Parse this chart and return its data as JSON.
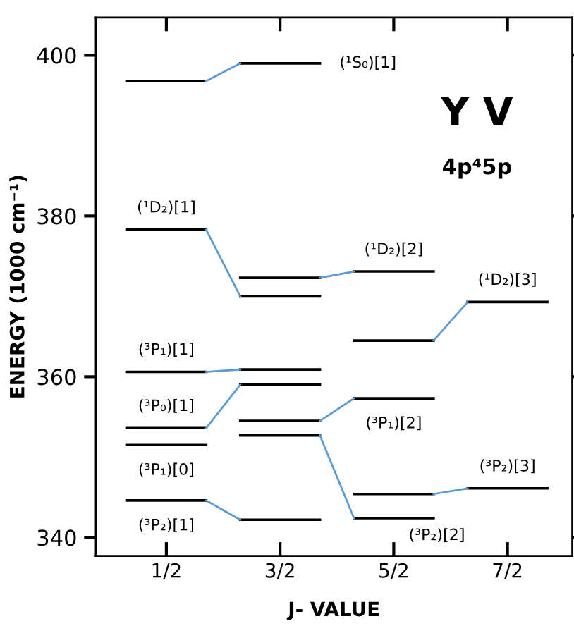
{
  "chart_data": {
    "type": "line",
    "title": "Y V",
    "subtitle": "4p⁴5p",
    "xlabel": "J- VALUE",
    "ylabel": "ENERGY (1000 cm⁻¹)",
    "xlim": [
      -0.12,
      4.07
    ],
    "ylim": [
      337.7,
      404.7
    ],
    "xticks": [
      {
        "value": 0.5,
        "label": "1/2"
      },
      {
        "value": 1.5,
        "label": "3/2"
      },
      {
        "value": 2.5,
        "label": "5/2"
      },
      {
        "value": 3.5,
        "label": "7/2"
      }
    ],
    "yticks": [
      340,
      360,
      380,
      400
    ],
    "grid": false,
    "legend": false,
    "marker": "none",
    "line_style": "solid",
    "series": [
      {
        "color": "#000000",
        "x": [
          0.15,
          0.85
        ],
        "values": [
          396.8,
          396.8
        ]
      },
      {
        "color": "#000000",
        "x": [
          0.15,
          0.85
        ],
        "values": [
          378.3,
          378.3
        ]
      },
      {
        "color": "#000000",
        "x": [
          0.15,
          0.85
        ],
        "values": [
          360.6,
          360.6
        ]
      },
      {
        "color": "#000000",
        "x": [
          0.15,
          0.85
        ],
        "values": [
          353.6,
          353.6
        ]
      },
      {
        "color": "#000000",
        "x": [
          0.15,
          0.85
        ],
        "values": [
          351.5,
          351.5
        ]
      },
      {
        "color": "#000000",
        "x": [
          0.15,
          0.85
        ],
        "values": [
          344.6,
          344.6
        ]
      },
      {
        "color": "#000000",
        "x": [
          1.15,
          1.85
        ],
        "values": [
          399.0,
          399.0
        ]
      },
      {
        "color": "#000000",
        "x": [
          1.15,
          1.85
        ],
        "values": [
          372.3,
          372.3
        ]
      },
      {
        "color": "#000000",
        "x": [
          1.15,
          1.85
        ],
        "values": [
          370.0,
          370.0
        ]
      },
      {
        "color": "#000000",
        "x": [
          1.15,
          1.85
        ],
        "values": [
          360.9,
          360.9
        ]
      },
      {
        "color": "#000000",
        "x": [
          1.15,
          1.85
        ],
        "values": [
          359.0,
          359.0
        ]
      },
      {
        "color": "#000000",
        "x": [
          1.15,
          1.85
        ],
        "values": [
          354.5,
          354.5
        ]
      },
      {
        "color": "#000000",
        "x": [
          1.15,
          1.85
        ],
        "values": [
          352.7,
          352.7
        ]
      },
      {
        "color": "#000000",
        "x": [
          1.15,
          1.85
        ],
        "values": [
          342.2,
          342.2
        ]
      },
      {
        "color": "#000000",
        "x": [
          2.15,
          2.85
        ],
        "values": [
          373.1,
          373.1
        ]
      },
      {
        "color": "#000000",
        "x": [
          2.15,
          2.85
        ],
        "values": [
          364.5,
          364.5
        ]
      },
      {
        "color": "#000000",
        "x": [
          2.15,
          2.85
        ],
        "values": [
          357.3,
          357.3
        ]
      },
      {
        "color": "#000000",
        "x": [
          2.15,
          2.85
        ],
        "values": [
          345.4,
          345.4
        ]
      },
      {
        "color": "#000000",
        "x": [
          2.15,
          2.85
        ],
        "values": [
          342.4,
          342.4
        ]
      },
      {
        "color": "#000000",
        "x": [
          3.15,
          3.85
        ],
        "values": [
          369.3,
          369.3
        ]
      },
      {
        "color": "#000000",
        "x": [
          3.15,
          3.85
        ],
        "values": [
          346.1,
          346.1
        ]
      },
      {
        "color": "#5b9bd5",
        "x": [
          0.85,
          1.15
        ],
        "values": [
          396.8,
          399.0
        ]
      },
      {
        "color": "#5b9bd5",
        "x": [
          0.85,
          1.15
        ],
        "values": [
          378.3,
          370.0
        ]
      },
      {
        "color": "#5b9bd5",
        "x": [
          1.85,
          2.15
        ],
        "values": [
          372.3,
          373.1
        ]
      },
      {
        "color": "#5b9bd5",
        "x": [
          2.85,
          3.15
        ],
        "values": [
          364.5,
          369.3
        ]
      },
      {
        "color": "#5b9bd5",
        "x": [
          0.85,
          1.15
        ],
        "values": [
          360.6,
          360.9
        ]
      },
      {
        "color": "#5b9bd5",
        "x": [
          0.85,
          1.15
        ],
        "values": [
          353.6,
          359.0
        ]
      },
      {
        "color": "#5b9bd5",
        "x": [
          1.85,
          2.15
        ],
        "values": [
          354.5,
          357.3
        ]
      },
      {
        "color": "#5b9bd5",
        "x": [
          1.85,
          2.15
        ],
        "values": [
          352.7,
          342.4
        ]
      },
      {
        "color": "#5b9bd5",
        "x": [
          2.85,
          3.15
        ],
        "values": [
          345.4,
          346.1
        ]
      },
      {
        "color": "#5b9bd5",
        "x": [
          0.85,
          1.15
        ],
        "values": [
          344.6,
          342.2
        ]
      }
    ],
    "annotations": [
      {
        "text": "(¹S₀)[1]",
        "x": 1.85,
        "y": 399.0
      },
      {
        "text": "(¹D₂)[1]",
        "x": 0.5,
        "y": 378.3
      },
      {
        "text": "(¹D₂)[2]",
        "x": 2.5,
        "y": 373.1
      },
      {
        "text": "(¹D₂)[3]",
        "x": 3.5,
        "y": 369.3
      },
      {
        "text": "(³P₁)[1]",
        "x": 0.5,
        "y": 360.6
      },
      {
        "text": "(³P₀)[1]",
        "x": 0.5,
        "y": 353.6
      },
      {
        "text": "(³P₁)[0]",
        "x": 0.5,
        "y": 351.5
      },
      {
        "text": "(³P₂)[1]",
        "x": 0.5,
        "y": 344.6
      },
      {
        "text": "(³P₁)[2]",
        "x": 2.5,
        "y": 357.3
      },
      {
        "text": "(³P₂)[2]",
        "x": 2.5,
        "y": 342.4
      },
      {
        "text": "(³P₂)[3]",
        "x": 3.5,
        "y": 346.1
      }
    ]
  }
}
